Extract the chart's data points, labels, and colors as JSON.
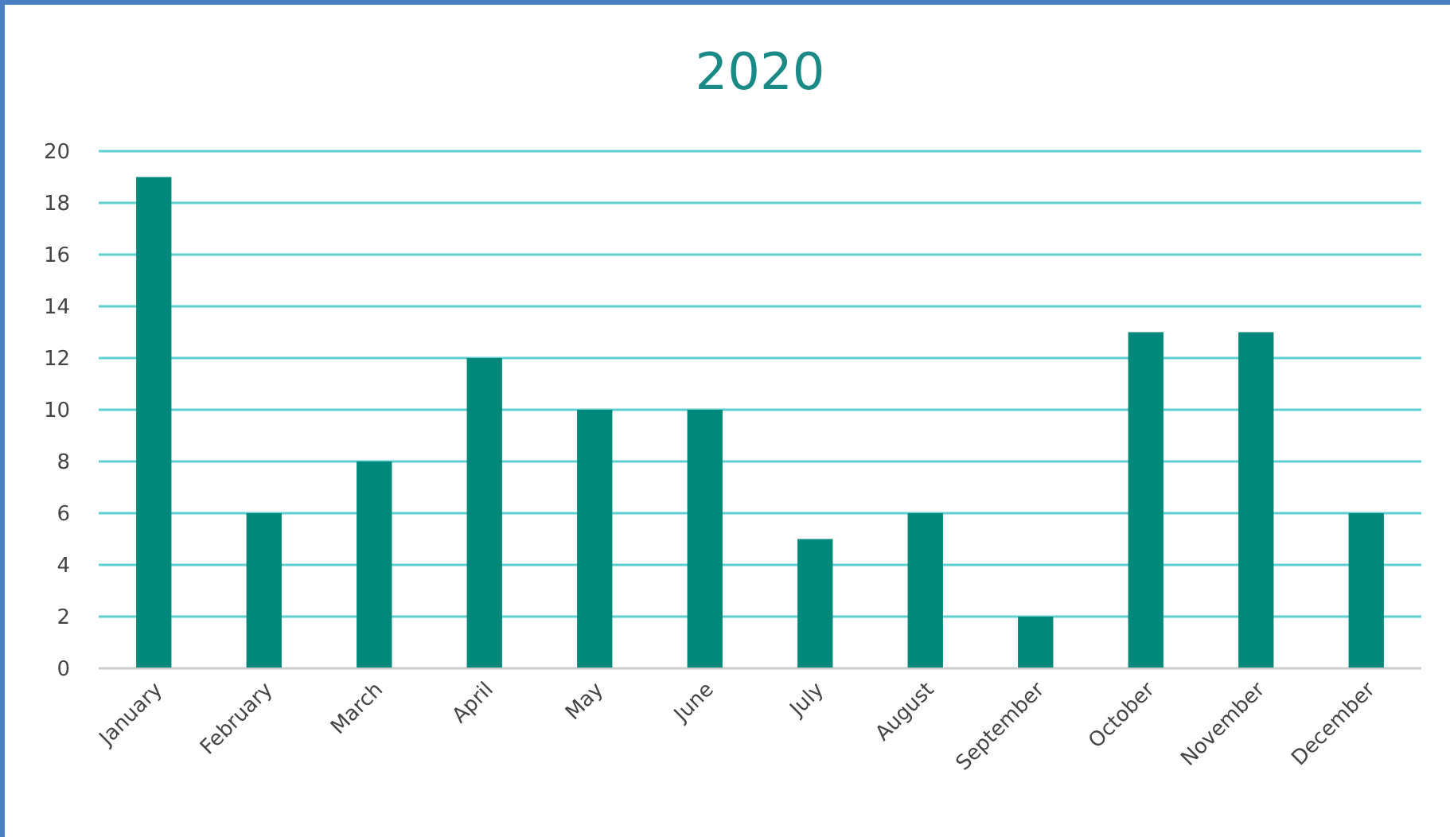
{
  "chart_data": {
    "type": "bar",
    "title": "2020",
    "categories": [
      "January",
      "February",
      "March",
      "April",
      "May",
      "June",
      "July",
      "August",
      "September",
      "October",
      "November",
      "December"
    ],
    "values": [
      19,
      6,
      8,
      12,
      10,
      10,
      5,
      6,
      2,
      13,
      13,
      6
    ],
    "color": "#00897b",
    "ylim": [
      0,
      20
    ],
    "yticks": [
      0,
      2,
      4,
      6,
      8,
      10,
      12,
      14,
      16,
      18,
      20
    ],
    "grid": "y"
  }
}
